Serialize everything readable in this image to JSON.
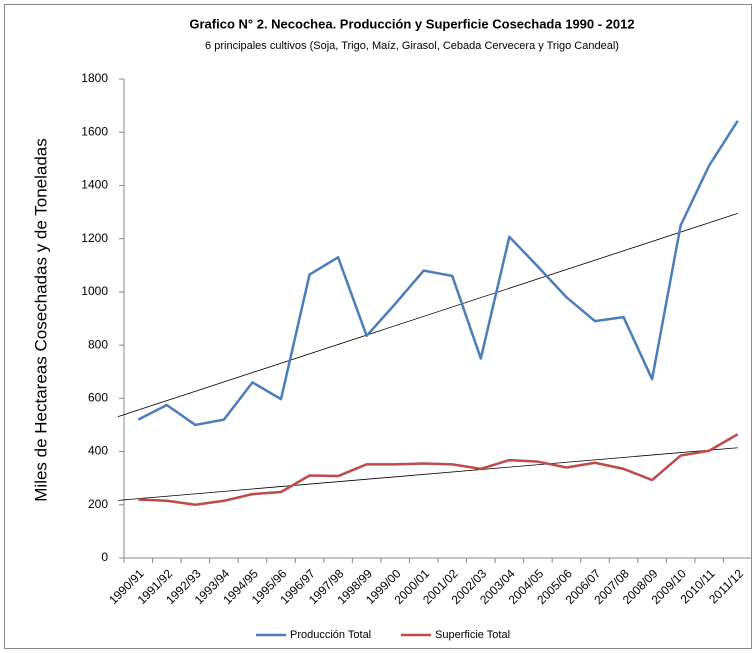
{
  "chart_data": {
    "type": "line",
    "title": "Grafico N° 2. Necochea. Producción y  Superficie Cosechada 1990 - 2012",
    "subtitle": "6 principales cultivos (Soja, Trigo, Maíz, Girasol, Cebada Cervecera y Trigo Candeal)",
    "y_label": "Miles de Hectareas Cosechadas  y  de Toneladas",
    "categories": [
      "1990/91",
      "1991/92",
      "1992/93",
      "1993/94",
      "1994/95",
      "1995/96",
      "1996/97",
      "1997/98",
      "1998/99",
      "1999/00",
      "2000/01",
      "2001/02",
      "2002/03",
      "2003/04",
      "2004/05",
      "2005/06",
      "2006/07",
      "2007/08",
      "2008/09",
      "2009/10",
      "2010/11",
      "2011/12"
    ],
    "series": [
      {
        "name": "Producción Total",
        "color": "#4a7ebb",
        "values": [
          520,
          575,
          500,
          520,
          660,
          597,
          1065,
          1130,
          835,
          955,
          1080,
          1060,
          750,
          1207,
          1095,
          980,
          890,
          905,
          672,
          1250,
          1475,
          1643
        ]
      },
      {
        "name": "Superficie Total",
        "color": "#be4b48",
        "values": [
          220,
          215,
          200,
          215,
          240,
          248,
          310,
          308,
          352,
          352,
          355,
          352,
          335,
          368,
          362,
          340,
          358,
          335,
          293,
          385,
          403,
          465
        ]
      }
    ],
    "trendline": true,
    "ylim": [
      0,
      1800
    ],
    "yticks": [
      0,
      200,
      400,
      600,
      800,
      1000,
      1200,
      1400,
      1600,
      1800
    ],
    "grid": false,
    "legend": "bottom"
  }
}
